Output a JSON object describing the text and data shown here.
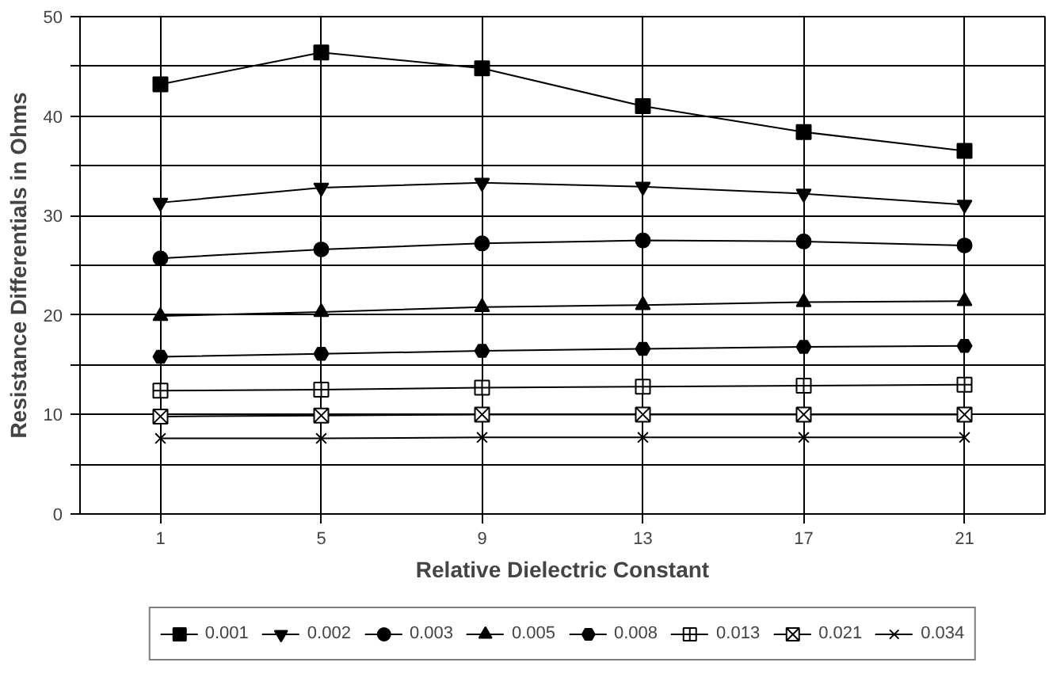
{
  "chart_data": {
    "type": "line",
    "xlabel": "Relative Dielectric Constant",
    "ylabel": "Resistance Differentials in Ohms",
    "categories": [
      "1",
      "5",
      "9",
      "13",
      "17",
      "21"
    ],
    "ylim": [
      0,
      50
    ],
    "yticks": [
      0,
      {
        "value": 5,
        "label": null
      },
      10,
      {
        "value": 15,
        "label": null
      },
      20,
      {
        "value": 25,
        "label": null
      },
      30,
      {
        "value": 35,
        "label": null
      },
      40,
      {
        "value": 45,
        "label": null
      },
      50
    ],
    "grid": true,
    "legend": "bottom",
    "series": [
      {
        "name": "0.001",
        "color": "#000000",
        "marker": "square",
        "values": [
          43.2,
          46.4,
          44.8,
          41.0,
          38.4,
          36.5
        ]
      },
      {
        "name": "0.002",
        "color": "#000000",
        "marker": "triangle",
        "values": [
          31.3,
          32.8,
          33.3,
          32.9,
          32.2,
          31.1
        ]
      },
      {
        "name": "0.003",
        "color": "#000000",
        "marker": "circle",
        "values": [
          25.7,
          26.6,
          27.2,
          27.5,
          27.4,
          27.0
        ]
      },
      {
        "name": "0.005",
        "color": "#000000",
        "marker": "triangle",
        "values": [
          19.9,
          20.3,
          20.8,
          21.0,
          21.3,
          21.4
        ]
      },
      {
        "name": "0.008",
        "color": "#000000",
        "marker": "star",
        "values": [
          15.8,
          16.1,
          16.4,
          16.6,
          16.8,
          16.9
        ]
      },
      {
        "name": "0.013",
        "color": "#000000",
        "marker": "cross",
        "values": [
          12.4,
          12.5,
          12.7,
          12.8,
          12.9,
          13.0
        ]
      },
      {
        "name": "0.021",
        "color": "#000000",
        "marker": "cross",
        "values": [
          9.8,
          9.9,
          10.0,
          10.0,
          10.0,
          10.0
        ]
      },
      {
        "name": "0.034",
        "color": "#000000",
        "marker": "cross",
        "values": [
          7.6,
          7.6,
          7.7,
          7.7,
          7.7,
          7.7
        ]
      }
    ]
  }
}
